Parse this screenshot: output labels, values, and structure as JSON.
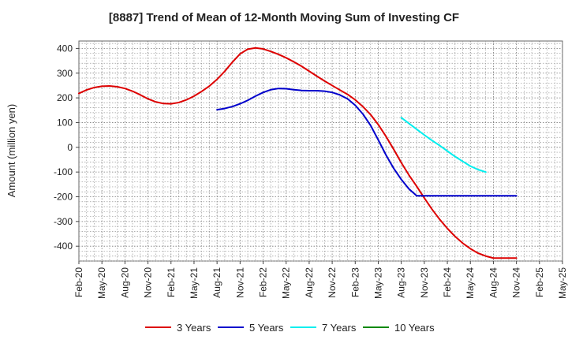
{
  "chart_data": {
    "type": "line",
    "title": "[8887]  Trend of Mean of 12-Month Moving Sum of Investing CF",
    "xlabel": "",
    "ylabel": "Amount (million yen)",
    "ylim": [
      -460,
      430
    ],
    "yticks": [
      400,
      300,
      200,
      100,
      0,
      -100,
      -200,
      -300,
      -400
    ],
    "categories": [
      "Feb-20",
      "May-20",
      "Aug-20",
      "Nov-20",
      "Feb-21",
      "May-21",
      "Aug-21",
      "Nov-21",
      "Feb-22",
      "May-22",
      "Aug-22",
      "Nov-22",
      "Feb-23",
      "May-23",
      "Aug-23",
      "Nov-23",
      "Feb-24",
      "May-24",
      "Aug-24",
      "Nov-24",
      "Feb-25",
      "May-25"
    ],
    "grid": true,
    "legend_position": "bottom",
    "series": [
      {
        "name": "3 Years",
        "color": "#dd0000",
        "x": [
          0,
          0.33,
          0.67,
          1,
          1.33,
          1.67,
          2,
          2.33,
          2.67,
          3,
          3.33,
          3.67,
          4,
          4.33,
          4.67,
          5,
          5.33,
          5.67,
          6,
          6.33,
          6.67,
          7,
          7.33,
          7.67,
          8,
          8.33,
          8.67,
          9,
          9.33,
          9.67,
          10,
          10.33,
          10.67,
          11,
          11.33,
          11.67,
          12,
          12.33,
          12.67,
          13,
          13.33,
          13.67,
          14,
          14.33,
          14.67,
          15,
          15.33,
          15.67,
          16,
          16.33,
          16.67,
          17,
          17.33,
          17.67,
          18,
          18.33,
          18.67,
          19
        ],
        "values": [
          218,
          232,
          242,
          247,
          248,
          245,
          238,
          227,
          212,
          196,
          184,
          177,
          176,
          181,
          192,
          207,
          226,
          248,
          275,
          307,
          345,
          378,
          397,
          402,
          398,
          388,
          376,
          362,
          346,
          328,
          308,
          288,
          268,
          250,
          232,
          214,
          192,
          165,
          132,
          92,
          45,
          -8,
          -62,
          -112,
          -158,
          -205,
          -250,
          -292,
          -328,
          -360,
          -388,
          -410,
          -428,
          -440,
          -448,
          -448,
          -448,
          -448
        ]
      },
      {
        "name": "5 Years",
        "color": "#0000cc",
        "x": [
          6,
          6.33,
          6.67,
          7,
          7.33,
          7.67,
          8,
          8.33,
          8.67,
          9,
          9.33,
          9.67,
          10,
          10.33,
          10.67,
          11,
          11.33,
          11.67,
          12,
          12.33,
          12.67,
          13,
          13.33,
          13.67,
          14,
          14.33,
          14.67,
          15,
          15.33,
          15.67,
          16,
          16.33,
          16.67,
          17,
          17.33,
          17.67,
          18,
          18.33,
          18.67,
          19
        ],
        "values": [
          152,
          157,
          165,
          176,
          190,
          207,
          222,
          233,
          238,
          237,
          233,
          230,
          229,
          229,
          227,
          222,
          212,
          196,
          170,
          135,
          88,
          30,
          -30,
          -85,
          -130,
          -168,
          -196,
          -196,
          -196,
          -196,
          -196,
          -196,
          -196,
          -196,
          -196,
          -196,
          -196,
          -196,
          -196,
          -196
        ]
      },
      {
        "name": "7 Years",
        "color": "#00eeee",
        "x": [
          14,
          14.33,
          14.67,
          15,
          15.33,
          15.67,
          16,
          16.33,
          16.67,
          17,
          17.33,
          17.67
        ],
        "values": [
          120,
          97,
          73,
          50,
          28,
          7,
          -15,
          -37,
          -57,
          -76,
          -90,
          -100
        ]
      },
      {
        "name": "10 Years",
        "color": "#008800",
        "x": [],
        "values": []
      }
    ]
  }
}
